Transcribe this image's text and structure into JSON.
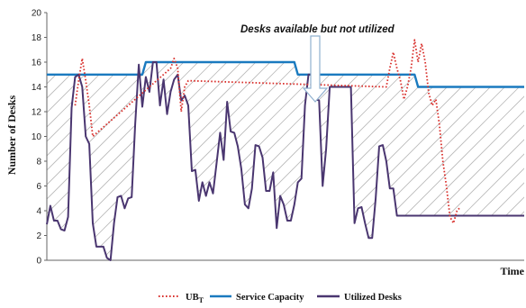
{
  "chart_data": {
    "type": "line",
    "title": "",
    "xlabel": "Time",
    "ylabel": "Number of Desks",
    "ylim": [
      0,
      20
    ],
    "yticks": [
      0,
      2,
      4,
      6,
      8,
      10,
      12,
      14,
      16,
      18,
      20
    ],
    "grid": false,
    "legend_position": "bottom",
    "annotation": "Desks available but not utilized",
    "x": [
      0,
      1,
      2,
      3,
      4,
      5,
      6,
      7,
      8,
      9,
      10,
      11,
      12,
      13,
      14,
      15,
      16,
      17,
      18,
      19,
      20,
      21,
      22,
      23,
      24,
      25,
      26,
      27,
      28,
      29,
      30,
      31,
      32,
      33,
      34,
      35,
      36,
      37,
      38,
      39,
      40,
      41,
      42,
      43,
      44,
      45,
      46,
      47,
      48,
      49,
      50,
      51,
      52,
      53,
      54,
      55,
      56,
      57,
      58,
      59,
      60,
      61,
      62,
      63,
      64,
      65,
      66,
      67,
      68,
      69,
      70,
      71,
      72,
      73,
      74,
      75,
      76,
      77,
      78,
      79,
      80,
      81,
      82,
      83,
      84,
      85,
      86,
      87,
      88,
      89,
      90,
      91,
      92,
      93,
      94,
      95,
      96,
      97,
      98,
      99,
      100,
      101,
      102,
      103,
      104,
      105,
      106,
      107,
      108,
      109,
      110,
      111,
      112,
      113,
      114,
      115,
      116,
      117,
      118,
      119,
      120,
      121,
      122,
      123,
      124,
      125,
      126,
      127,
      128,
      129,
      130,
      131,
      132,
      133,
      134,
      135
    ],
    "series": [
      {
        "name": "UB",
        "name_subscript": "T",
        "color": "#d9302c",
        "style": "dotted",
        "x": [
          8,
          9,
          10,
          11,
          12,
          13,
          35,
          36,
          37,
          38,
          39,
          40,
          96,
          97,
          98,
          99,
          100,
          101,
          102,
          103,
          104,
          105,
          106,
          107,
          108,
          109,
          110,
          111,
          112,
          113,
          114,
          115,
          116,
          117
        ],
        "values": [
          12.5,
          14.5,
          16.3,
          14.5,
          12.5,
          10.0,
          15.5,
          16.3,
          15.5,
          12.0,
          14.0,
          14.5,
          14.0,
          15.5,
          16.8,
          15.5,
          14.5,
          13.0,
          14.0,
          15.5,
          17.8,
          16.0,
          17.5,
          16.0,
          13.5,
          12.5,
          13.0,
          11.0,
          8.0,
          6.0,
          3.5,
          3.0,
          4.0,
          4.3
        ]
      },
      {
        "name": "Service Capacity",
        "color": "#1a7abf",
        "style": "solid",
        "x": [
          0,
          27,
          28,
          70,
          71,
          100,
          101,
          104,
          105,
          135
        ],
        "values": [
          15,
          15,
          16,
          16,
          15,
          15,
          15,
          15,
          14,
          14
        ]
      },
      {
        "name": "Utilized Desks",
        "color": "#4a3670",
        "style": "solid",
        "x": [
          0,
          1,
          2,
          3,
          4,
          5,
          6,
          7,
          8,
          9,
          10,
          11,
          12,
          13,
          14,
          15,
          16,
          17,
          18,
          19,
          20,
          21,
          22,
          23,
          24,
          25,
          26,
          27,
          28,
          29,
          30,
          31,
          32,
          33,
          34,
          35,
          36,
          37,
          38,
          39,
          40,
          41,
          42,
          43,
          44,
          45,
          46,
          47,
          48,
          49,
          50,
          51,
          52,
          53,
          54,
          55,
          56,
          57,
          58,
          59,
          60,
          61,
          62,
          63,
          64,
          65,
          66,
          67,
          68,
          69,
          70,
          71,
          72,
          73,
          74,
          75,
          76,
          77,
          78,
          79,
          80,
          81,
          82,
          83,
          84,
          85,
          86,
          87,
          88,
          89,
          90,
          91,
          92,
          93,
          94,
          95,
          96,
          97,
          98,
          99,
          100,
          101,
          102,
          103,
          104,
          105,
          106,
          107,
          108,
          109,
          110,
          111,
          112,
          113,
          114,
          115,
          116,
          117,
          118,
          119,
          120,
          121,
          122,
          123,
          124,
          125,
          126,
          127,
          128,
          129,
          130,
          131,
          132,
          133,
          134,
          135
        ],
        "values": [
          2.9,
          4.4,
          3.2,
          3.2,
          2.5,
          2.4,
          3.5,
          12.3,
          14.8,
          15.0,
          14.0,
          10.0,
          9.4,
          3.0,
          1.1,
          1.1,
          1.1,
          0.2,
          0.0,
          3.0,
          5.1,
          5.2,
          4.2,
          5.0,
          5.1,
          11.0,
          15.8,
          12.4,
          14.8,
          13.6,
          16.0,
          16.0,
          12.5,
          14.6,
          11.8,
          13.6,
          14.6,
          15.0,
          12.9,
          13.3,
          12.5,
          7.2,
          7.3,
          4.8,
          6.3,
          5.2,
          6.3,
          5.4,
          7.8,
          10.3,
          8.1,
          12.8,
          10.4,
          10.3,
          9.2,
          7.4,
          4.5,
          4.2,
          5.8,
          9.3,
          9.2,
          8.3,
          5.6,
          5.6,
          7.1,
          2.6,
          5.2,
          4.5,
          3.2,
          3.2,
          4.5,
          6.3,
          6.6,
          12.5,
          15.0,
          15.0,
          13.0,
          12.9,
          6.0,
          9.0,
          14.0,
          14.0,
          14.0,
          14.0,
          14.0,
          14.0,
          14.0,
          3.0,
          4.2,
          4.3,
          3.0,
          1.8,
          1.8,
          5.0,
          9.2,
          9.3,
          8.0,
          5.8,
          5.8,
          3.6,
          3.6,
          3.6,
          3.6,
          3.6,
          3.6,
          3.6,
          3.6,
          3.6,
          3.6,
          3.6,
          3.6,
          3.6,
          3.6,
          3.6,
          3.6,
          3.6,
          3.6,
          3.6,
          3.6,
          3.6,
          3.6,
          3.6,
          3.6,
          3.6,
          3.6,
          3.6,
          3.6,
          3.6,
          3.6,
          3.6,
          3.6,
          3.6,
          3.6,
          3.6,
          3.6,
          3.6
        ]
      }
    ]
  }
}
